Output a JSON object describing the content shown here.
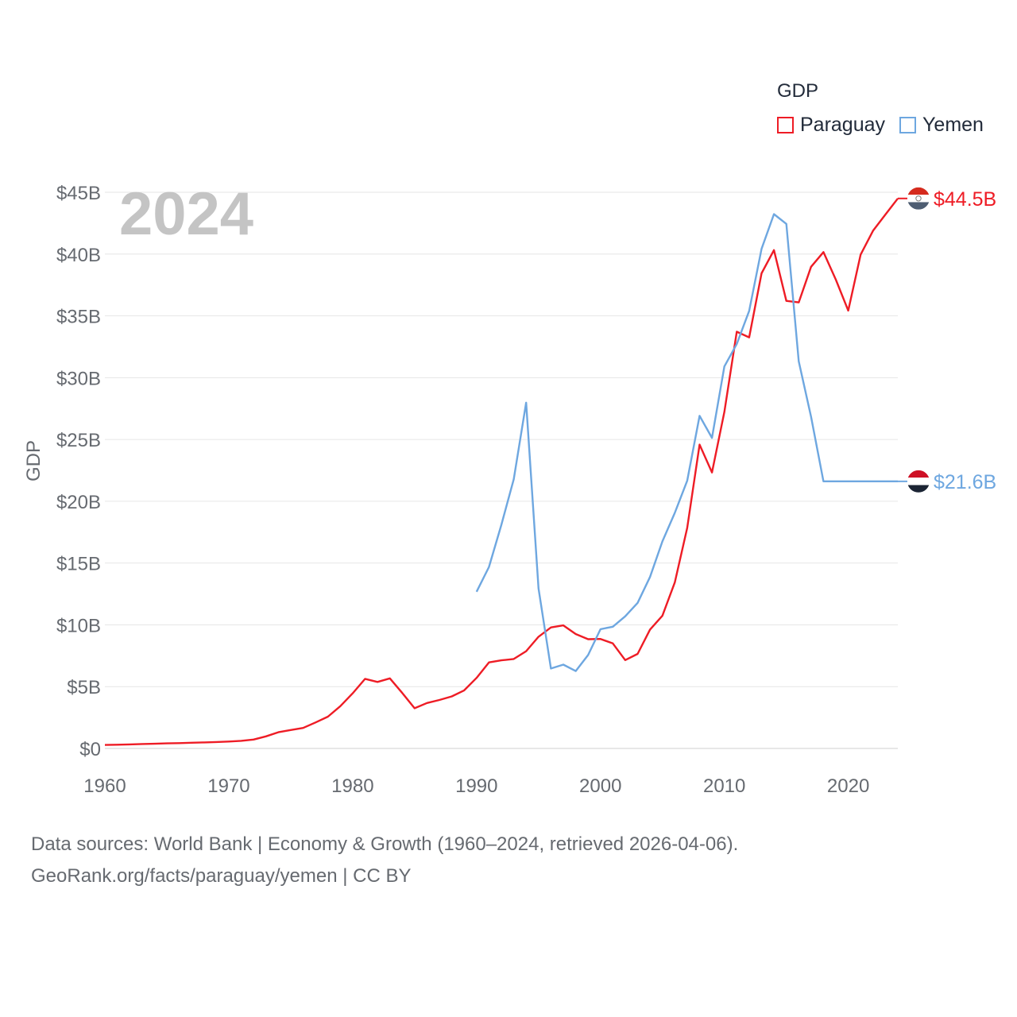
{
  "legend": {
    "title": "GDP",
    "items": [
      {
        "label": "Paraguay",
        "color": "#ee1c25"
      },
      {
        "label": "Yemen",
        "color": "#6ea7e0"
      }
    ]
  },
  "year_label": "2024",
  "source": {
    "line1": "Data sources: World Bank | Economy & Growth (1960–2024, retrieved 2026-04-06).",
    "line2": "GeoRank.org/facts/paraguay/yemen | CC BY"
  },
  "chart_data": {
    "type": "line",
    "title": "GDP",
    "xlabel": "",
    "ylabel": "GDP",
    "xlim": [
      1960,
      2024
    ],
    "ylim": [
      0,
      45
    ],
    "y_unit": "billion USD",
    "x_ticks": [
      1960,
      1970,
      1980,
      1990,
      2000,
      2010,
      2020
    ],
    "y_ticks": [
      {
        "value": 0,
        "label": "$0"
      },
      {
        "value": 5,
        "label": "$5B"
      },
      {
        "value": 10,
        "label": "$10B"
      },
      {
        "value": 15,
        "label": "$15B"
      },
      {
        "value": 20,
        "label": "$20B"
      },
      {
        "value": 25,
        "label": "$25B"
      },
      {
        "value": 30,
        "label": "$30B"
      },
      {
        "value": 35,
        "label": "$35B"
      },
      {
        "value": 40,
        "label": "$40B"
      },
      {
        "value": 45,
        "label": "$45B"
      }
    ],
    "grid": true,
    "series": [
      {
        "name": "Paraguay",
        "color": "#ee1c25",
        "end_label": "$44.5B",
        "end_flag": "paraguay-flag-icon",
        "x": [
          1960,
          1961,
          1962,
          1963,
          1964,
          1965,
          1966,
          1967,
          1968,
          1969,
          1970,
          1971,
          1972,
          1973,
          1974,
          1975,
          1976,
          1977,
          1978,
          1979,
          1980,
          1981,
          1982,
          1983,
          1984,
          1985,
          1986,
          1987,
          1988,
          1989,
          1990,
          1991,
          1992,
          1993,
          1994,
          1995,
          1996,
          1997,
          1998,
          1999,
          2000,
          2001,
          2002,
          2003,
          2004,
          2005,
          2006,
          2007,
          2008,
          2009,
          2010,
          2011,
          2012,
          2013,
          2014,
          2015,
          2016,
          2017,
          2018,
          2019,
          2020,
          2021,
          2022,
          2023,
          2024
        ],
        "values": [
          0.28,
          0.3,
          0.33,
          0.36,
          0.38,
          0.41,
          0.43,
          0.46,
          0.49,
          0.52,
          0.56,
          0.62,
          0.72,
          0.98,
          1.31,
          1.49,
          1.66,
          2.1,
          2.57,
          3.42,
          4.46,
          5.63,
          5.38,
          5.67,
          4.49,
          3.25,
          3.68,
          3.92,
          4.21,
          4.7,
          5.71,
          6.96,
          7.13,
          7.24,
          7.87,
          9.04,
          9.79,
          9.96,
          9.26,
          8.84,
          8.86,
          8.5,
          7.15,
          7.65,
          9.62,
          10.74,
          13.43,
          17.84,
          24.58,
          22.33,
          27.23,
          33.72,
          33.26,
          38.44,
          40.32,
          36.21,
          36.09,
          38.97,
          40.16,
          37.93,
          35.43,
          39.96,
          41.89,
          43.2,
          44.5
        ]
      },
      {
        "name": "Yemen",
        "color": "#6ea7e0",
        "end_label": "$21.6B",
        "end_flag": "yemen-flag-icon",
        "x": [
          1990,
          1991,
          1992,
          1993,
          1994,
          1995,
          1996,
          1997,
          1998,
          1999,
          2000,
          2001,
          2002,
          2003,
          2004,
          2005,
          2006,
          2007,
          2008,
          2009,
          2010,
          2011,
          2012,
          2013,
          2014,
          2015,
          2016,
          2017,
          2018,
          2019,
          2020,
          2021,
          2022,
          2023,
          2024
        ],
        "values": [
          12.68,
          14.68,
          18.09,
          21.78,
          27.98,
          12.94,
          6.47,
          6.78,
          6.26,
          7.56,
          9.65,
          9.85,
          10.69,
          11.78,
          13.87,
          16.75,
          19.06,
          21.66,
          26.91,
          25.13,
          30.91,
          32.73,
          35.4,
          40.42,
          43.23,
          42.44,
          31.32,
          26.84,
          21.61,
          21.61,
          21.61,
          21.61,
          21.61,
          21.61,
          21.61
        ]
      }
    ]
  }
}
